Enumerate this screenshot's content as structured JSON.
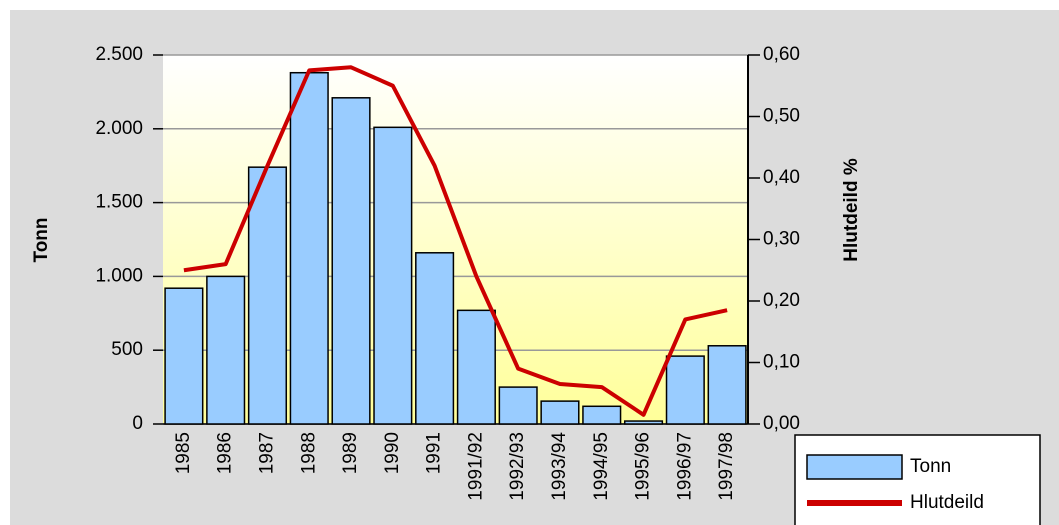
{
  "chart_data": {
    "type": "bar_line",
    "categories": [
      "1985",
      "1986",
      "1987",
      "1988",
      "1989",
      "1990",
      "1991",
      "1991/92",
      "1992/93",
      "1993/94",
      "1994/95",
      "1995/96",
      "1996/97",
      "1997/98"
    ],
    "series": [
      {
        "name": "Tonn",
        "type": "bar",
        "color": "#99ccff",
        "values": [
          920,
          1000,
          1740,
          2380,
          2210,
          2010,
          1160,
          770,
          250,
          155,
          120,
          20,
          460,
          530
        ]
      },
      {
        "name": "Hlutdeild",
        "type": "line",
        "axis": "y2",
        "color": "#cc0000",
        "values": [
          0.25,
          0.26,
          0.42,
          0.575,
          0.58,
          0.55,
          0.42,
          0.24,
          0.09,
          0.065,
          0.06,
          0.015,
          0.17,
          0.185
        ]
      }
    ],
    "y_label": "Tonn",
    "y2_label": "Hlutdeild %",
    "ylim": [
      0,
      2500
    ],
    "yticks": [
      0,
      500,
      {
        "value": 1000,
        "label": "1.000"
      },
      {
        "value": 1500,
        "label": "1.500"
      },
      {
        "value": 2000,
        "label": "2.000"
      },
      {
        "value": 2500,
        "label": "2.500"
      }
    ],
    "y2lim": [
      0,
      0.6
    ],
    "y2ticks": [
      {
        "value": 0,
        "label": "0,00"
      },
      {
        "value": 0.1,
        "label": "0,10"
      },
      {
        "value": 0.2,
        "label": "0,20"
      },
      {
        "value": 0.3,
        "label": "0,30"
      },
      {
        "value": 0.4,
        "label": "0,40"
      },
      {
        "value": 0.5,
        "label": "0,50"
      },
      {
        "value": 0.6,
        "label": "0,60"
      }
    ],
    "grid": true,
    "legend": "bottom-right"
  }
}
